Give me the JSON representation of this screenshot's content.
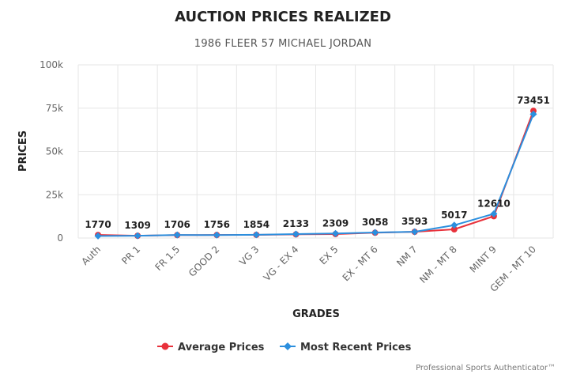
{
  "chart_data": {
    "type": "line",
    "title": "AUCTION PRICES REALIZED",
    "subtitle": "1986 FLEER 57 MICHAEL JORDAN",
    "xlabel": "GRADES",
    "ylabel": "PRICES",
    "categories": [
      "Auth",
      "PR 1",
      "FR 1.5",
      "GOOD 2",
      "VG 3",
      "VG - EX 4",
      "EX 5",
      "EX - MT 6",
      "NM 7",
      "NM - MT 8",
      "MINT 9",
      "GEM - MT 10"
    ],
    "ylim": [
      0,
      100000
    ],
    "yticks": [
      0,
      25000,
      50000,
      75000,
      100000
    ],
    "ytick_labels": [
      "0",
      "25k",
      "50k",
      "75k",
      "100k"
    ],
    "grid": true,
    "legend_position": "bottom-center",
    "series": [
      {
        "name": "Average Prices",
        "color": "#e8313b",
        "marker": "circle",
        "values": [
          1770,
          1309,
          1706,
          1756,
          1854,
          2133,
          2309,
          3058,
          3593,
          5017,
          12610,
          73451
        ]
      },
      {
        "name": "Most Recent Prices",
        "color": "#2b8fde",
        "marker": "diamond",
        "values": [
          1200,
          1300,
          1750,
          1700,
          1900,
          2300,
          2600,
          3200,
          3600,
          7400,
          14000,
          71500
        ]
      }
    ],
    "data_labels": [
      "1770",
      "1309",
      "1706",
      "1756",
      "1854",
      "2133",
      "2309",
      "3058",
      "3593",
      "5017",
      "12610",
      "73451"
    ]
  },
  "footer": {
    "credit": "Professional Sports Authenticator™"
  }
}
